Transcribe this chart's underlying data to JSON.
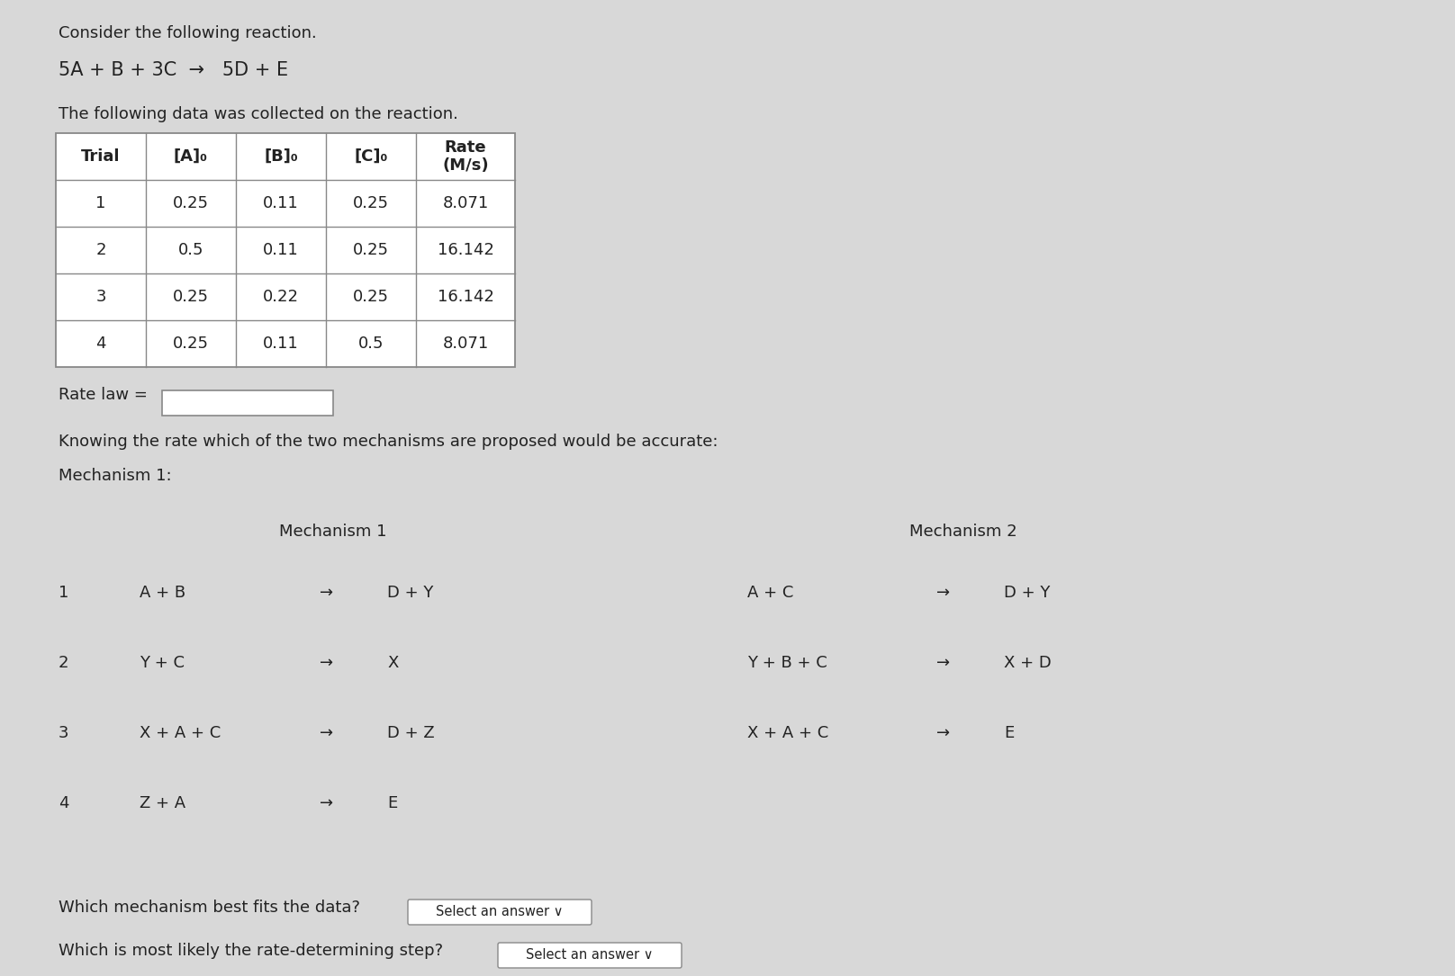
{
  "bg_color": "#d8d8d8",
  "title_line1": "Consider the following reaction.",
  "reaction": "5A + B + 3C  →   5D + E",
  "data_intro": "The following data was collected on the reaction.",
  "table_headers": [
    "Trial",
    "[A]₀",
    "[B]₀",
    "[C]₀",
    "Rate\n(M/s)"
  ],
  "table_data": [
    [
      "1",
      "0.25",
      "0.11",
      "0.25",
      "8.071"
    ],
    [
      "2",
      "0.5",
      "0.11",
      "0.25",
      "16.142"
    ],
    [
      "3",
      "0.25",
      "0.22",
      "0.25",
      "16.142"
    ],
    [
      "4",
      "0.25",
      "0.11",
      "0.5",
      "8.071"
    ]
  ],
  "rate_law_label": "Rate law =",
  "knowing_text": "Knowing the rate which of the two mechanisms are proposed would be accurate:",
  "mechanism1_label": "Mechanism 1:",
  "mech1_header": "Mechanism 1",
  "mech2_header": "Mechanism 2",
  "mech1_steps": [
    [
      "1",
      "A + B",
      "→",
      "D + Y"
    ],
    [
      "2",
      "Y + C",
      "→",
      "X"
    ],
    [
      "3",
      "X + A + C",
      "→",
      "D + Z"
    ],
    [
      "4",
      "Z + A",
      "→",
      "E"
    ]
  ],
  "mech2_steps": [
    [
      "A + C",
      "→",
      "D + Y"
    ],
    [
      "Y + B + C",
      "→",
      "X + D"
    ],
    [
      "X + A + C",
      "→",
      "E"
    ]
  ],
  "question1": "Which mechanism best fits the data?",
  "question2": "Which is most likely the rate-determining step?",
  "select_answer_text": "Select an answer ∨",
  "font_size_body": 13,
  "font_size_table": 13,
  "text_color": "#222222",
  "table_border_color": "#888888"
}
